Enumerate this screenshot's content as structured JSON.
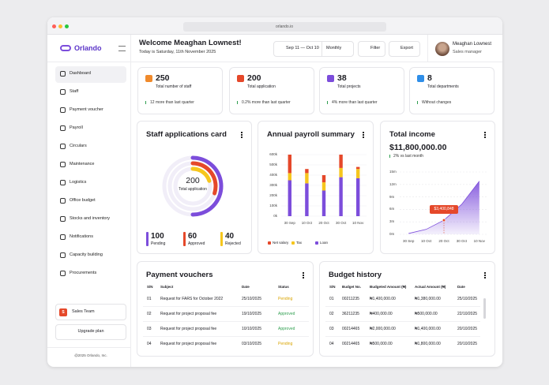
{
  "browser": {
    "url": "orlando.io"
  },
  "sidebar": {
    "brand": "Orlando",
    "nav": [
      "Dashboard",
      "Staff",
      "Payment voucher",
      "Payroll",
      "Circulars",
      "Maintenance",
      "Logistics",
      "Office budget",
      "Stocks and inventory",
      "Notifications",
      "Capacity building",
      "Procurements"
    ],
    "team_badge": "S",
    "team": "Sales Team",
    "upgrade": "Upgrade plan",
    "footer": "@2025 Orlando, Inc."
  },
  "header": {
    "title": "Welcome Meaghan Lownest!",
    "subtitle": "Today is Saturday, 11th November 2025",
    "date_range": "Sep 11 — Oct 10",
    "period": "Monthly",
    "filter": "Filter",
    "export": "Export",
    "user_name": "Meaghan Lownest",
    "user_role": "Sales manager"
  },
  "stats": [
    {
      "value": 250,
      "label": "Total number of staff",
      "change": "12 more than last quarter",
      "color": "#f08a2c"
    },
    {
      "value": 200,
      "label": "Total application",
      "change": "0.2% more than last quarter",
      "color": "#e5482a"
    },
    {
      "value": 38,
      "label": "Total projects",
      "change": "4% more than last quarter",
      "color": "#7c4ddb"
    },
    {
      "value": 8,
      "label": "Total departments",
      "change": "Without changes",
      "color": "#2f8ee8"
    }
  ],
  "staff_applications": {
    "title": "Staff applications card",
    "total": 200,
    "total_label": "Total application",
    "items": [
      {
        "value": 100,
        "label": "Pending",
        "color": "#7c4ddb"
      },
      {
        "value": 60,
        "label": "Approved",
        "color": "#e5482a"
      },
      {
        "value": 40,
        "label": "Rejected",
        "color": "#f6c61d"
      }
    ]
  },
  "payroll_chart": {
    "type": "bar",
    "stacked": true,
    "title": "Annual payroll summary",
    "categories": [
      "30 Sep",
      "10 Oct",
      "20 Oct",
      "30 Oct",
      "10 Nov"
    ],
    "series": [
      {
        "name": "Net salary",
        "color": "#e5482a",
        "values": [
          180000,
          40000,
          70000,
          130000,
          20000
        ]
      },
      {
        "name": "Tax",
        "color": "#f6c61d",
        "values": [
          70000,
          100000,
          80000,
          90000,
          90000
        ]
      },
      {
        "name": "Loan",
        "color": "#7c4ddb",
        "values": [
          350000,
          320000,
          250000,
          380000,
          370000
        ]
      }
    ],
    "ylim": [
      0,
      600000
    ],
    "yticks": [
      {
        "value": 0,
        "label": "0k"
      },
      {
        "value": 100000,
        "label": "100k"
      },
      {
        "value": 200000,
        "label": "200k"
      },
      {
        "value": 300000,
        "label": "300k"
      },
      {
        "value": 400000,
        "label": "400k"
      },
      {
        "value": 500000,
        "label": "500k"
      },
      {
        "value": 600000,
        "label": "600k"
      }
    ]
  },
  "income_chart": {
    "type": "area",
    "title": "Total income",
    "total": "$11,800,000.00",
    "change": "2% vs last month",
    "color": "#7c4ddb",
    "x": [
      "30 Sep",
      "10 Oct",
      "20 Oct",
      "30 Oct",
      "10 Nov"
    ],
    "values": [
      200000,
      1200000,
      3400848,
      7200000,
      12800000
    ],
    "value_labels": [
      null,
      null,
      "$3,400,848",
      null,
      null
    ],
    "ylim": [
      0,
      15000000
    ],
    "yticks": [
      {
        "value": 0,
        "label": "0m"
      },
      {
        "value": 3000000,
        "label": "3m"
      },
      {
        "value": 6000000,
        "label": "6m"
      },
      {
        "value": 9000000,
        "label": "9m"
      },
      {
        "value": 12000000,
        "label": "12m"
      },
      {
        "value": 15000000,
        "label": "15m"
      }
    ]
  },
  "payment_vouchers": {
    "title": "Payment vouchers",
    "columns": [
      "S/N",
      "Subject",
      "Date",
      "Status"
    ],
    "rows": [
      [
        "01",
        "Request for FARS for October 2022",
        "25/10/2025",
        "Pending"
      ],
      [
        "02",
        "Request for project proposal fee",
        "19/10/2025",
        "Approved"
      ],
      [
        "03",
        "Request for project proposal fee",
        "10/10/2025",
        "Approved"
      ],
      [
        "04",
        "Request for project proposal fee",
        "03/10/2025",
        "Pending"
      ]
    ],
    "status_colors": [
      "#d9a400",
      "#2e9e4f",
      "#2e9e4f",
      "#d9a400"
    ]
  },
  "budget_history": {
    "title": "Budget history",
    "columns": [
      "S/N",
      "Budget No.",
      "Budgeted Amount (₦)",
      "Actual Amount (₦)",
      "Date"
    ],
    "rows": [
      [
        "01",
        "00211235",
        "₦1,400,000.00",
        "₦1,380,000.00",
        "25/10/2025"
      ],
      [
        "02",
        "36211235",
        "₦400,000.00",
        "₦500,000.00",
        "22/10/2025"
      ],
      [
        "03",
        "00214465",
        "₦2,000,000.00",
        "₦1,400,000.00",
        "20/10/2025"
      ],
      [
        "04",
        "00214465",
        "₦500,000.00",
        "₦1,800,000.00",
        "20/10/2025"
      ]
    ]
  }
}
